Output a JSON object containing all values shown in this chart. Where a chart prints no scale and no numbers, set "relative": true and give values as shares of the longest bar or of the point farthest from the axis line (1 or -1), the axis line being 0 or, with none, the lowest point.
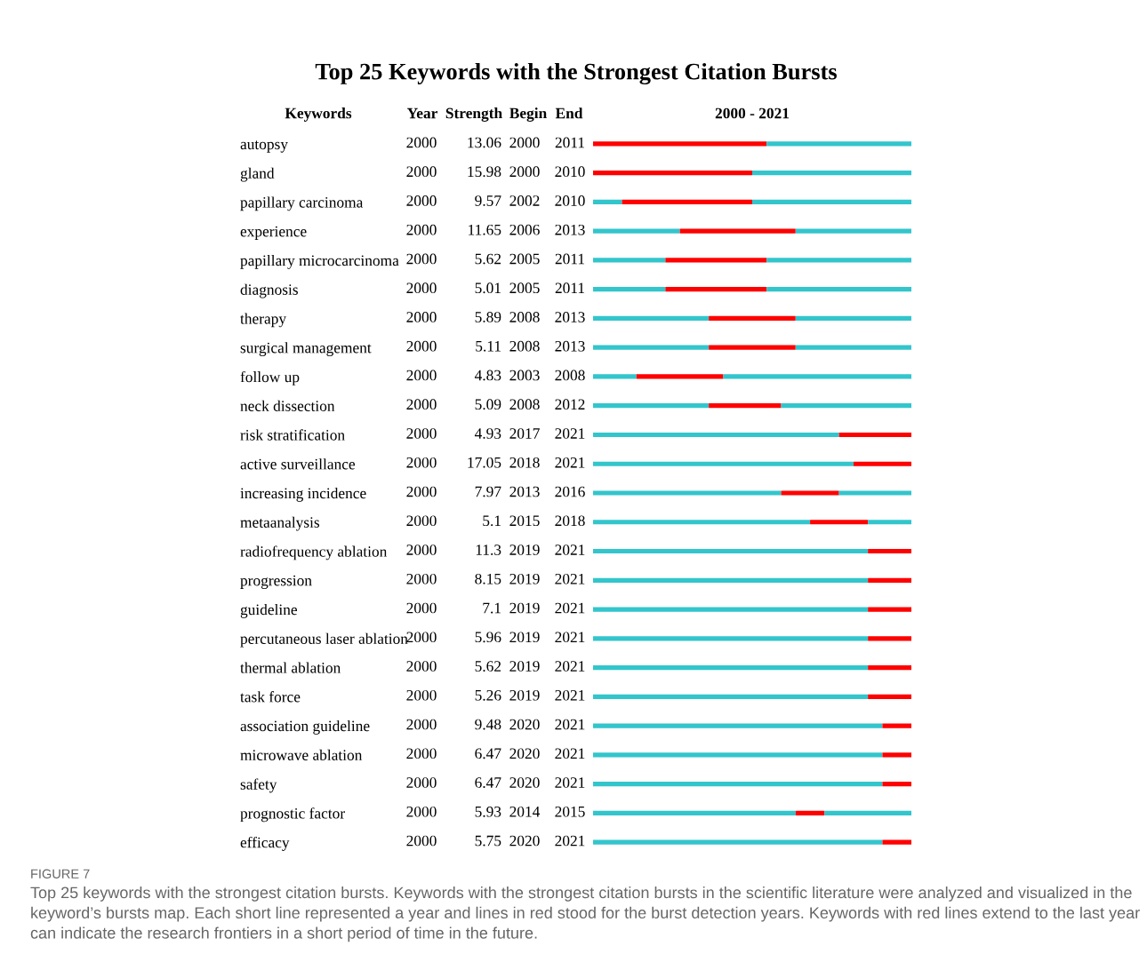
{
  "chart_data": {
    "type": "bar",
    "orientation": "horizontal",
    "stacked": true,
    "title": "Top 25 Keywords with the Strongest Citation Bursts",
    "categories": [
      "autopsy",
      "gland",
      "papillary carcinoma",
      "experience",
      "papillary microcarcinoma",
      "diagnosis",
      "therapy",
      "surgical management",
      "follow up",
      "neck dissection",
      "risk stratification",
      "active surveillance",
      "increasing incidence",
      "metaanalysis",
      "radiofrequency ablation",
      "progression",
      "guideline",
      "percutaneous laser ablation",
      "thermal ablation",
      "task force",
      "association guideline",
      "microwave ablation",
      "safety",
      "prognostic factor",
      "efficacy"
    ],
    "relative": true,
    "series": [
      {
        "color": "#33c5cc",
        "values": [
          0,
          0,
          0.0909,
          0.2727,
          0.2273,
          0.2273,
          0.3636,
          0.3636,
          0.1364,
          0.3636,
          0.7727,
          0.8182,
          0.5909,
          0.6818,
          0.8636,
          0.8636,
          0.8636,
          0.8636,
          0.8636,
          0.8636,
          0.9091,
          0.9091,
          0.9091,
          0.6364,
          0.9091
        ]
      },
      {
        "color": "#ff0000",
        "values": [
          0.5455,
          0.5,
          0.4091,
          0.3636,
          0.3182,
          0.3182,
          0.2727,
          0.2727,
          0.2727,
          0.2273,
          0.2273,
          0.1818,
          0.1818,
          0.1818,
          0.1364,
          0.1364,
          0.1364,
          0.1364,
          0.1364,
          0.1364,
          0.0909,
          0.0909,
          0.0909,
          0.0909,
          0.0909
        ]
      },
      {
        "color": "#33c5cc",
        "values": [
          0.4545,
          0.5,
          0.5,
          0.3636,
          0.4545,
          0.4545,
          0.3636,
          0.3636,
          0.5909,
          0.4091,
          0,
          0,
          0.2273,
          0.1364,
          0,
          0,
          0,
          0,
          0,
          0,
          0,
          0,
          0,
          0.2727,
          0
        ]
      }
    ],
    "tick_labels": "y",
    "grid": false,
    "legend": false,
    "annotations": [
      "Keywords",
      "Year",
      "Strength",
      "Begin",
      "End",
      "2000 - 2021",
      "2000",
      "13.06",
      "2000",
      "2011",
      "2000",
      "15.98",
      "2000",
      "2010",
      "2000",
      "9.57",
      "2002",
      "2010",
      "2000",
      "11.65",
      "2006",
      "2013",
      "2000",
      "5.62",
      "2005",
      "2011",
      "2000",
      "5.01",
      "2005",
      "2011",
      "2000",
      "5.89",
      "2008",
      "2013",
      "2000",
      "5.11",
      "2008",
      "2013",
      "2000",
      "4.83",
      "2003",
      "2008",
      "2000",
      "5.09",
      "2008",
      "2012",
      "2000",
      "4.93",
      "2017",
      "2021",
      "2000",
      "17.05",
      "2018",
      "2021",
      "2000",
      "7.97",
      "2013",
      "2016",
      "2000",
      "5.1",
      "2015",
      "2018",
      "2000",
      "11.3",
      "2019",
      "2021",
      "2000",
      "8.15",
      "2019",
      "2021",
      "2000",
      "7.1",
      "2019",
      "2021",
      "2000",
      "5.96",
      "2019",
      "2021",
      "2000",
      "5.62",
      "2019",
      "2021",
      "2000",
      "5.26",
      "2019",
      "2021",
      "2000",
      "9.48",
      "2020",
      "2021",
      "2000",
      "6.47",
      "2020",
      "2021",
      "2000",
      "6.47",
      "2020",
      "2021",
      "2000",
      "5.93",
      "2014",
      "2015",
      "2000",
      "5.75",
      "2020",
      "2021",
      "FIGURE 7",
      "Top 25 keywords with the strongest citation bursts. Keywords with the strongest citation bursts in the scientific literature were analyzed and visualized in the keyword’s bursts map. Each short line represented a year and lines in red stood for the burst detection years. Keywords with red lines extend to the last year can indicate the research frontiers in a short period of time in the future."
    ]
  }
}
